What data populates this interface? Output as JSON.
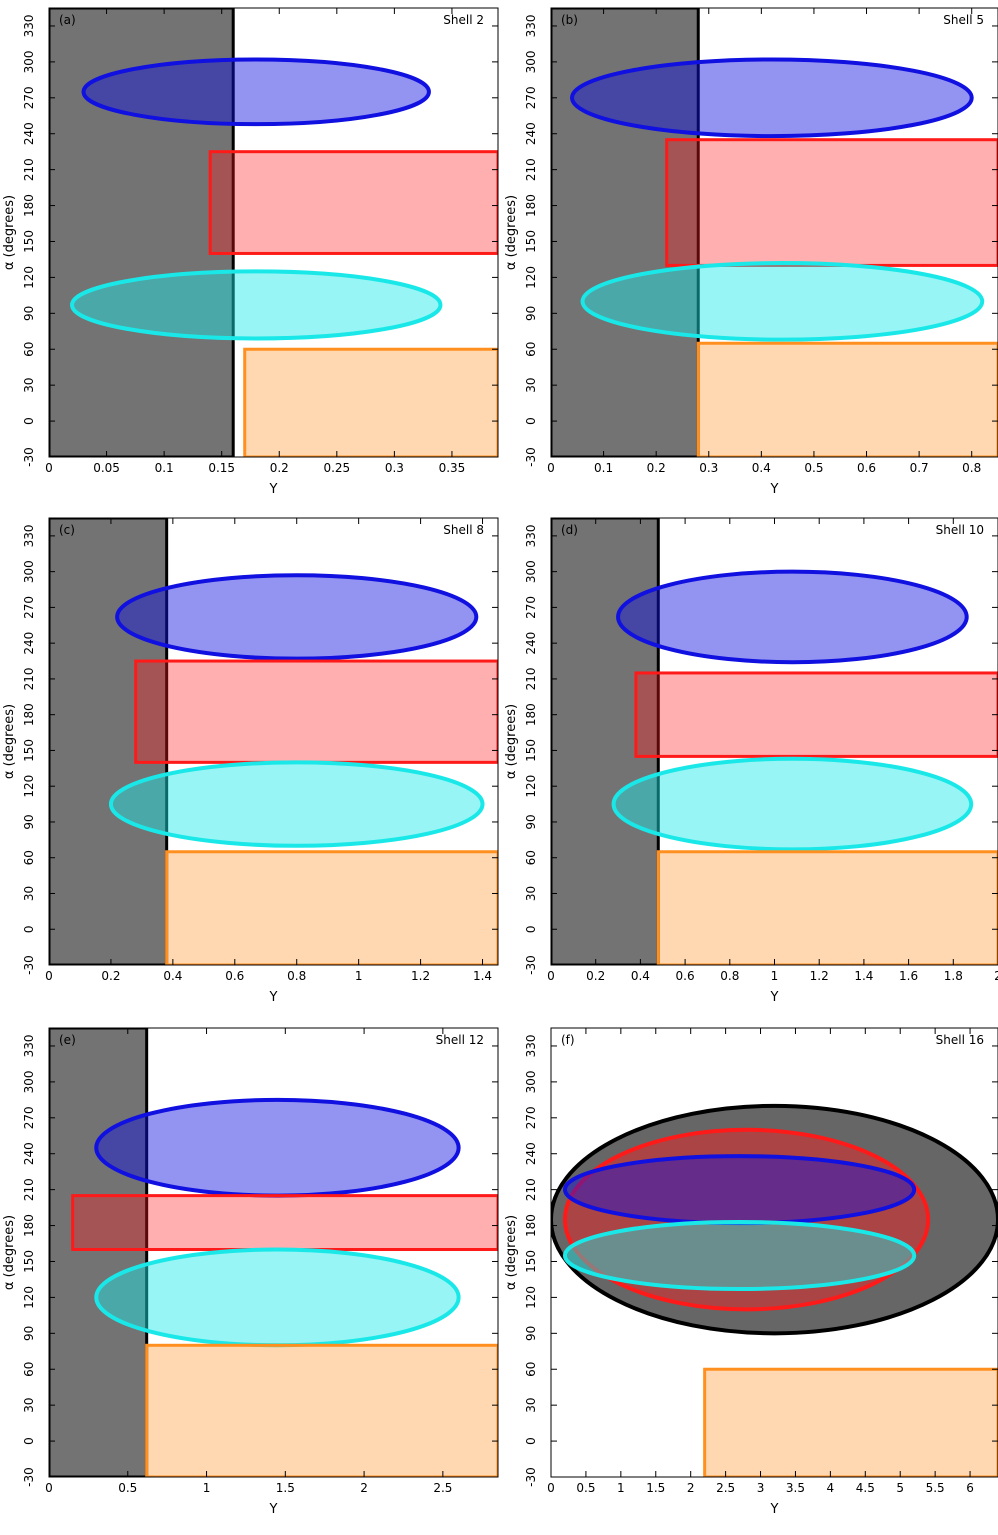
{
  "figure": {
    "colors": {
      "black_region": "#000000",
      "blue_region": "#1010e0",
      "red_region": "#ff1a1a",
      "cyan_region": "#1ae8e8",
      "orange_region": "#ff9020"
    }
  },
  "chart_data": [
    {
      "type": "scatter",
      "panel_label": "(a)",
      "shell_label": "Shell 2",
      "xlabel": "Y",
      "ylabel": "α (degrees)",
      "xlim": [
        0,
        0.39
      ],
      "ylim": [
        -30,
        345
      ],
      "xticks": [
        "0",
        "0.05",
        "0.1",
        "0.15",
        "0.2",
        "0.25",
        "0.3",
        "0.35"
      ],
      "xtick_values": [
        0,
        0.05,
        0.1,
        0.15,
        0.2,
        0.25,
        0.3,
        0.35
      ],
      "yticks": [
        "-30",
        "0",
        "30",
        "60",
        "90",
        "120",
        "150",
        "180",
        "210",
        "240",
        "270",
        "300",
        "330"
      ],
      "ytick_values": [
        -30,
        0,
        30,
        60,
        90,
        120,
        150,
        180,
        210,
        240,
        270,
        300,
        330
      ],
      "regions": [
        {
          "color": "black",
          "shape": "rect",
          "y_min": 0,
          "y_max": 0.16,
          "alpha_min": -30,
          "alpha_max": 345
        },
        {
          "color": "blue",
          "shape": "ellipse",
          "y_center": 0.18,
          "y_halfwidth": 0.15,
          "alpha_center": 275,
          "alpha_halfwidth": 27
        },
        {
          "color": "red",
          "shape": "rect",
          "y_min": 0.14,
          "y_max": 0.39,
          "alpha_min": 140,
          "alpha_max": 225
        },
        {
          "color": "cyan",
          "shape": "ellipse",
          "y_center": 0.18,
          "y_halfwidth": 0.16,
          "alpha_center": 97,
          "alpha_halfwidth": 28
        },
        {
          "color": "orange",
          "shape": "rect",
          "y_min": 0.17,
          "y_max": 0.39,
          "alpha_min": -30,
          "alpha_max": 60
        }
      ]
    },
    {
      "type": "scatter",
      "panel_label": "(b)",
      "shell_label": "Shell 5",
      "xlabel": "Y",
      "ylabel": "α (degrees)",
      "xlim": [
        0,
        0.85
      ],
      "ylim": [
        -30,
        345
      ],
      "xticks": [
        "0",
        "0.1",
        "0.2",
        "0.3",
        "0.4",
        "0.5",
        "0.6",
        "0.7",
        "0.8"
      ],
      "xtick_values": [
        0,
        0.1,
        0.2,
        0.3,
        0.4,
        0.5,
        0.6,
        0.7,
        0.8
      ],
      "yticks": [
        "-30",
        "0",
        "30",
        "60",
        "90",
        "120",
        "150",
        "180",
        "210",
        "240",
        "270",
        "300",
        "330"
      ],
      "ytick_values": [
        -30,
        0,
        30,
        60,
        90,
        120,
        150,
        180,
        210,
        240,
        270,
        300,
        330
      ],
      "regions": [
        {
          "color": "black",
          "shape": "rect",
          "y_min": 0,
          "y_max": 0.28,
          "alpha_min": -30,
          "alpha_max": 345
        },
        {
          "color": "blue",
          "shape": "ellipse",
          "y_center": 0.42,
          "y_halfwidth": 0.38,
          "alpha_center": 270,
          "alpha_halfwidth": 32
        },
        {
          "color": "red",
          "shape": "rect",
          "y_min": 0.22,
          "y_max": 0.85,
          "alpha_min": 130,
          "alpha_max": 235
        },
        {
          "color": "cyan",
          "shape": "ellipse",
          "y_center": 0.44,
          "y_halfwidth": 0.38,
          "alpha_center": 100,
          "alpha_halfwidth": 32
        },
        {
          "color": "orange",
          "shape": "rect",
          "y_min": 0.28,
          "y_max": 0.85,
          "alpha_min": -30,
          "alpha_max": 65
        }
      ]
    },
    {
      "type": "scatter",
      "panel_label": "(c)",
      "shell_label": "Shell 8",
      "xlabel": "Y",
      "ylabel": "α (degrees)",
      "xlim": [
        0,
        1.45
      ],
      "ylim": [
        -30,
        345
      ],
      "xticks": [
        "0",
        "0.2",
        "0.4",
        "0.6",
        "0.8",
        "1",
        "1.2",
        "1.4"
      ],
      "xtick_values": [
        0,
        0.2,
        0.4,
        0.6,
        0.8,
        1,
        1.2,
        1.4
      ],
      "yticks": [
        "-30",
        "0",
        "30",
        "60",
        "90",
        "120",
        "150",
        "180",
        "210",
        "240",
        "270",
        "300",
        "330"
      ],
      "ytick_values": [
        -30,
        0,
        30,
        60,
        90,
        120,
        150,
        180,
        210,
        240,
        270,
        300,
        330
      ],
      "regions": [
        {
          "color": "black",
          "shape": "rect",
          "y_min": 0,
          "y_max": 0.38,
          "alpha_min": -30,
          "alpha_max": 345
        },
        {
          "color": "blue",
          "shape": "ellipse",
          "y_center": 0.8,
          "y_halfwidth": 0.58,
          "alpha_center": 262,
          "alpha_halfwidth": 35
        },
        {
          "color": "red",
          "shape": "rect",
          "y_min": 0.28,
          "y_max": 1.45,
          "alpha_min": 140,
          "alpha_max": 225
        },
        {
          "color": "cyan",
          "shape": "ellipse",
          "y_center": 0.8,
          "y_halfwidth": 0.6,
          "alpha_center": 105,
          "alpha_halfwidth": 35
        },
        {
          "color": "orange",
          "shape": "rect",
          "y_min": 0.38,
          "y_max": 1.45,
          "alpha_min": -30,
          "alpha_max": 65
        }
      ]
    },
    {
      "type": "scatter",
      "panel_label": "(d)",
      "shell_label": "Shell 10",
      "xlabel": "Y",
      "ylabel": "α (degrees)",
      "xlim": [
        0,
        2
      ],
      "ylim": [
        -30,
        345
      ],
      "xticks": [
        "0",
        "0.2",
        "0.4",
        "0.6",
        "0.8",
        "1",
        "1.2",
        "1.4",
        "1.6",
        "1.8",
        "2"
      ],
      "xtick_values": [
        0,
        0.2,
        0.4,
        0.6,
        0.8,
        1,
        1.2,
        1.4,
        1.6,
        1.8,
        2
      ],
      "yticks": [
        "-30",
        "0",
        "30",
        "60",
        "90",
        "120",
        "150",
        "180",
        "210",
        "240",
        "270",
        "300",
        "330"
      ],
      "ytick_values": [
        -30,
        0,
        30,
        60,
        90,
        120,
        150,
        180,
        210,
        240,
        270,
        300,
        330
      ],
      "regions": [
        {
          "color": "black",
          "shape": "rect",
          "y_min": 0,
          "y_max": 0.48,
          "alpha_min": -30,
          "alpha_max": 345
        },
        {
          "color": "blue",
          "shape": "ellipse",
          "y_center": 1.08,
          "y_halfwidth": 0.78,
          "alpha_center": 262,
          "alpha_halfwidth": 38
        },
        {
          "color": "red",
          "shape": "rect",
          "y_min": 0.38,
          "y_max": 2,
          "alpha_min": 145,
          "alpha_max": 215
        },
        {
          "color": "cyan",
          "shape": "ellipse",
          "y_center": 1.08,
          "y_halfwidth": 0.8,
          "alpha_center": 105,
          "alpha_halfwidth": 38
        },
        {
          "color": "orange",
          "shape": "rect",
          "y_min": 0.48,
          "y_max": 2,
          "alpha_min": -30,
          "alpha_max": 65
        }
      ]
    },
    {
      "type": "scatter",
      "panel_label": "(e)",
      "shell_label": "Shell 12",
      "xlabel": "Y",
      "ylabel": "α (degrees)",
      "xlim": [
        0,
        2.85
      ],
      "ylim": [
        -30,
        345
      ],
      "xticks": [
        "0",
        "0.5",
        "1",
        "1.5",
        "2",
        "2.5"
      ],
      "xtick_values": [
        0,
        0.5,
        1,
        1.5,
        2,
        2.5
      ],
      "yticks": [
        "-30",
        "0",
        "30",
        "60",
        "90",
        "120",
        "150",
        "180",
        "210",
        "240",
        "270",
        "300",
        "330"
      ],
      "ytick_values": [
        -30,
        0,
        30,
        60,
        90,
        120,
        150,
        180,
        210,
        240,
        270,
        300,
        330
      ],
      "regions": [
        {
          "color": "black",
          "shape": "rect",
          "y_min": 0,
          "y_max": 0.62,
          "alpha_min": -30,
          "alpha_max": 345
        },
        {
          "color": "blue",
          "shape": "ellipse",
          "y_center": 1.45,
          "y_halfwidth": 1.15,
          "alpha_center": 245,
          "alpha_halfwidth": 40
        },
        {
          "color": "red",
          "shape": "rect",
          "y_min": 0.15,
          "y_max": 2.85,
          "alpha_min": 160,
          "alpha_max": 205
        },
        {
          "color": "cyan",
          "shape": "ellipse",
          "y_center": 1.45,
          "y_halfwidth": 1.15,
          "alpha_center": 120,
          "alpha_halfwidth": 40
        },
        {
          "color": "orange",
          "shape": "rect",
          "y_min": 0.62,
          "y_max": 2.85,
          "alpha_min": -30,
          "alpha_max": 80
        }
      ]
    },
    {
      "type": "scatter",
      "panel_label": "(f)",
      "shell_label": "Shell 16",
      "xlabel": "Y",
      "ylabel": "α (degrees)",
      "xlim": [
        0,
        6.4
      ],
      "ylim": [
        -30,
        345
      ],
      "xticks": [
        "0",
        "0.5",
        "1",
        "1.5",
        "2",
        "2.5",
        "3",
        "3.5",
        "4",
        "4.5",
        "5",
        "5.5",
        "6"
      ],
      "xtick_values": [
        0,
        0.5,
        1,
        1.5,
        2,
        2.5,
        3,
        3.5,
        4,
        4.5,
        5,
        5.5,
        6
      ],
      "yticks": [
        "-30",
        "0",
        "30",
        "60",
        "90",
        "120",
        "150",
        "180",
        "210",
        "240",
        "270",
        "300",
        "330"
      ],
      "ytick_values": [
        -30,
        0,
        30,
        60,
        90,
        120,
        150,
        180,
        210,
        240,
        270,
        300,
        330
      ],
      "regions": [
        {
          "color": "black",
          "shape": "ellipse",
          "y_center": 3.2,
          "y_halfwidth": 3.2,
          "alpha_center": 185,
          "alpha_halfwidth": 95
        },
        {
          "color": "red",
          "shape": "ellipse",
          "y_center": 2.8,
          "y_halfwidth": 2.6,
          "alpha_center": 185,
          "alpha_halfwidth": 75
        },
        {
          "color": "blue",
          "shape": "ellipse",
          "y_center": 2.7,
          "y_halfwidth": 2.5,
          "alpha_center": 210,
          "alpha_halfwidth": 28
        },
        {
          "color": "cyan",
          "shape": "ellipse",
          "y_center": 2.7,
          "y_halfwidth": 2.5,
          "alpha_center": 155,
          "alpha_halfwidth": 28
        },
        {
          "color": "orange",
          "shape": "rect",
          "y_min": 2.2,
          "y_max": 6.4,
          "alpha_min": -30,
          "alpha_max": 60
        }
      ]
    }
  ]
}
